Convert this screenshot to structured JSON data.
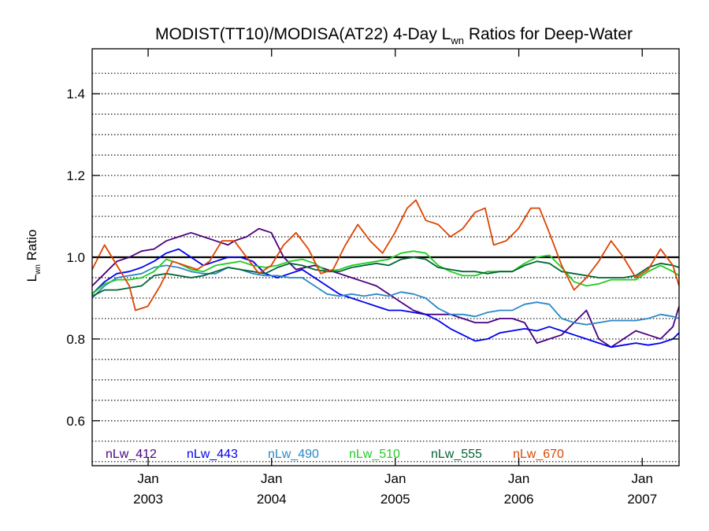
{
  "chart_data": {
    "type": "line",
    "title_main": "MODIST(TT10)/MODISA(AT22) 4-Day L",
    "title_sub": "wn",
    "title_tail": " Ratios for Deep-Water",
    "ylabel_main": "L",
    "ylabel_sub": "wn",
    "ylabel_tail": " Ratio",
    "xlim": [
      2002.5,
      2007.25
    ],
    "ylim": [
      0.49,
      1.51
    ],
    "y_ticks": [
      0.6,
      0.8,
      1.0,
      1.2,
      1.4
    ],
    "y_tick_labels": [
      "0.6",
      "0.8",
      "1.0",
      "1.2",
      "1.4"
    ],
    "y_dotted_gridlines": [
      0.5,
      0.55,
      0.6,
      0.65,
      0.7,
      0.75,
      0.8,
      0.85,
      0.9,
      0.95,
      1.05,
      1.1,
      1.15,
      1.2,
      1.25,
      1.3,
      1.35,
      1.4,
      1.45
    ],
    "reference_line": 1.0,
    "x_ticks": [
      {
        "pos": 2002.953,
        "line1": "Jan",
        "line2": "2003"
      },
      {
        "pos": 2003.952,
        "line1": "Jan",
        "line2": "2004"
      },
      {
        "pos": 2004.953,
        "line1": "Jan",
        "line2": "2005"
      },
      {
        "pos": 2005.953,
        "line1": "Jan",
        "line2": "2006"
      },
      {
        "pos": 2006.952,
        "line1": "Jan",
        "line2": "2007"
      }
    ],
    "legend_placement": "bottom",
    "series": [
      {
        "name": "nLw_412",
        "color": "#4b0082",
        "x": [
          2002.5,
          2002.6,
          2002.7,
          2002.8,
          2002.9,
          2003.0,
          2003.1,
          2003.2,
          2003.3,
          2003.4,
          2003.5,
          2003.6,
          2003.65,
          2003.75,
          2003.85,
          2003.95,
          2004.05,
          2004.15,
          2004.3,
          2004.4,
          2004.5,
          2004.6,
          2004.7,
          2004.8,
          2004.9,
          2005.0,
          2005.1,
          2005.2,
          2005.3,
          2005.4,
          2005.5,
          2005.6,
          2005.7,
          2005.8,
          2005.9,
          2006.0,
          2006.1,
          2006.2,
          2006.3,
          2006.4,
          2006.5,
          2006.6,
          2006.7,
          2006.8,
          2006.9,
          2007.0,
          2007.1,
          2007.2,
          2007.25
        ],
        "y": [
          0.93,
          0.96,
          0.99,
          1.0,
          1.015,
          1.02,
          1.04,
          1.05,
          1.06,
          1.05,
          1.04,
          1.03,
          1.04,
          1.05,
          1.07,
          1.06,
          1.0,
          0.97,
          0.98,
          0.97,
          0.96,
          0.95,
          0.94,
          0.93,
          0.91,
          0.89,
          0.87,
          0.86,
          0.86,
          0.86,
          0.85,
          0.84,
          0.84,
          0.85,
          0.85,
          0.84,
          0.79,
          0.8,
          0.81,
          0.84,
          0.87,
          0.8,
          0.78,
          0.8,
          0.82,
          0.81,
          0.8,
          0.83,
          0.88
        ]
      },
      {
        "name": "nLw_443",
        "color": "#0000ee",
        "x": [
          2002.5,
          2002.6,
          2002.7,
          2002.8,
          2002.9,
          2003.0,
          2003.1,
          2003.2,
          2003.3,
          2003.4,
          2003.5,
          2003.6,
          2003.7,
          2003.8,
          2003.9,
          2004.0,
          2004.1,
          2004.2,
          2004.3,
          2004.4,
          2004.5,
          2004.6,
          2004.7,
          2004.8,
          2004.9,
          2005.0,
          2005.1,
          2005.2,
          2005.3,
          2005.4,
          2005.5,
          2005.6,
          2005.7,
          2005.8,
          2005.9,
          2006.0,
          2006.1,
          2006.2,
          2006.3,
          2006.4,
          2006.5,
          2006.6,
          2006.7,
          2006.8,
          2006.9,
          2007.0,
          2007.1,
          2007.2,
          2007.25
        ],
        "y": [
          0.91,
          0.94,
          0.96,
          0.965,
          0.975,
          0.99,
          1.01,
          1.02,
          1.0,
          0.98,
          0.99,
          1.0,
          1.0,
          0.99,
          0.96,
          0.95,
          0.96,
          0.97,
          0.95,
          0.93,
          0.91,
          0.9,
          0.89,
          0.88,
          0.87,
          0.87,
          0.865,
          0.86,
          0.845,
          0.825,
          0.81,
          0.795,
          0.8,
          0.815,
          0.82,
          0.825,
          0.82,
          0.83,
          0.82,
          0.81,
          0.8,
          0.79,
          0.78,
          0.785,
          0.79,
          0.785,
          0.79,
          0.8,
          0.815
        ]
      },
      {
        "name": "nLw_490",
        "color": "#2a88c8",
        "x": [
          2002.5,
          2002.6,
          2002.7,
          2002.8,
          2002.9,
          2003.0,
          2003.1,
          2003.2,
          2003.3,
          2003.4,
          2003.5,
          2003.6,
          2003.7,
          2003.8,
          2003.9,
          2004.0,
          2004.1,
          2004.2,
          2004.3,
          2004.4,
          2004.5,
          2004.6,
          2004.7,
          2004.8,
          2004.9,
          2005.0,
          2005.1,
          2005.2,
          2005.3,
          2005.4,
          2005.5,
          2005.6,
          2005.7,
          2005.8,
          2005.9,
          2006.0,
          2006.1,
          2006.2,
          2006.3,
          2006.4,
          2006.5,
          2006.6,
          2006.7,
          2006.8,
          2006.9,
          2007.0,
          2007.1,
          2007.2,
          2007.25
        ],
        "y": [
          0.9,
          0.93,
          0.95,
          0.955,
          0.96,
          0.975,
          0.98,
          0.975,
          0.965,
          0.96,
          0.96,
          0.975,
          0.97,
          0.96,
          0.955,
          0.955,
          0.95,
          0.95,
          0.93,
          0.91,
          0.905,
          0.91,
          0.905,
          0.91,
          0.905,
          0.915,
          0.91,
          0.9,
          0.875,
          0.86,
          0.86,
          0.855,
          0.865,
          0.87,
          0.87,
          0.885,
          0.89,
          0.885,
          0.85,
          0.84,
          0.835,
          0.84,
          0.845,
          0.845,
          0.845,
          0.85,
          0.86,
          0.855,
          0.85
        ]
      },
      {
        "name": "nLw_510",
        "color": "#22cc22",
        "x": [
          2002.5,
          2002.6,
          2002.7,
          2002.8,
          2002.9,
          2003.0,
          2003.1,
          2003.2,
          2003.3,
          2003.4,
          2003.5,
          2003.6,
          2003.7,
          2003.8,
          2003.9,
          2004.0,
          2004.1,
          2004.2,
          2004.3,
          2004.4,
          2004.5,
          2004.6,
          2004.7,
          2004.8,
          2004.9,
          2005.0,
          2005.1,
          2005.2,
          2005.3,
          2005.4,
          2005.5,
          2005.6,
          2005.7,
          2005.8,
          2005.9,
          2006.0,
          2006.1,
          2006.2,
          2006.3,
          2006.4,
          2006.5,
          2006.6,
          2006.7,
          2006.8,
          2006.9,
          2007.0,
          2007.1,
          2007.2,
          2007.25
        ],
        "y": [
          0.91,
          0.935,
          0.945,
          0.945,
          0.95,
          0.965,
          0.995,
          0.985,
          0.97,
          0.965,
          0.98,
          0.985,
          0.99,
          0.98,
          0.975,
          0.98,
          0.99,
          0.995,
          0.985,
          0.965,
          0.97,
          0.98,
          0.985,
          0.99,
          0.995,
          1.01,
          1.015,
          1.01,
          0.98,
          0.965,
          0.955,
          0.955,
          0.965,
          0.965,
          0.965,
          0.985,
          1.0,
          1.005,
          0.975,
          0.94,
          0.93,
          0.935,
          0.945,
          0.945,
          0.945,
          0.965,
          0.98,
          0.965,
          0.955
        ]
      },
      {
        "name": "nLw_555",
        "color": "#006633",
        "x": [
          2002.5,
          2002.6,
          2002.7,
          2002.8,
          2002.9,
          2003.0,
          2003.1,
          2003.2,
          2003.3,
          2003.4,
          2003.5,
          2003.6,
          2003.7,
          2003.8,
          2003.9,
          2004.0,
          2004.1,
          2004.2,
          2004.3,
          2004.4,
          2004.5,
          2004.6,
          2004.7,
          2004.8,
          2004.9,
          2005.0,
          2005.1,
          2005.2,
          2005.3,
          2005.4,
          2005.5,
          2005.6,
          2005.7,
          2005.8,
          2005.9,
          2006.0,
          2006.1,
          2006.2,
          2006.3,
          2006.4,
          2006.5,
          2006.6,
          2006.7,
          2006.8,
          2006.9,
          2007.0,
          2007.1,
          2007.2,
          2007.25
        ],
        "y": [
          0.905,
          0.92,
          0.92,
          0.925,
          0.93,
          0.955,
          0.96,
          0.955,
          0.95,
          0.955,
          0.965,
          0.975,
          0.97,
          0.965,
          0.96,
          0.975,
          0.985,
          0.98,
          0.97,
          0.965,
          0.965,
          0.975,
          0.98,
          0.985,
          0.98,
          0.995,
          1.0,
          0.995,
          0.975,
          0.97,
          0.965,
          0.965,
          0.96,
          0.965,
          0.965,
          0.98,
          0.99,
          0.985,
          0.965,
          0.96,
          0.955,
          0.95,
          0.95,
          0.95,
          0.955,
          0.975,
          0.985,
          0.98,
          0.975
        ]
      },
      {
        "name": "nLw_670",
        "color": "#dd4400",
        "x": [
          2002.5,
          2002.55,
          2002.6,
          2002.7,
          2002.8,
          2002.85,
          2002.95,
          2003.05,
          2003.15,
          2003.25,
          2003.35,
          2003.45,
          2003.55,
          2003.65,
          2003.75,
          2003.85,
          2003.95,
          2004.05,
          2004.15,
          2004.25,
          2004.35,
          2004.45,
          2004.55,
          2004.65,
          2004.75,
          2004.85,
          2004.95,
          2005.05,
          2005.12,
          2005.2,
          2005.3,
          2005.4,
          2005.5,
          2005.6,
          2005.68,
          2005.75,
          2005.85,
          2005.95,
          2006.05,
          2006.12,
          2006.2,
          2006.3,
          2006.4,
          2006.5,
          2006.6,
          2006.7,
          2006.8,
          2006.9,
          2007.0,
          2007.1,
          2007.2,
          2007.25
        ],
        "y": [
          0.97,
          1.0,
          1.03,
          0.98,
          0.93,
          0.87,
          0.88,
          0.93,
          0.99,
          0.98,
          0.97,
          0.99,
          1.04,
          1.04,
          1.0,
          0.96,
          0.98,
          1.03,
          1.06,
          1.02,
          0.96,
          0.97,
          1.03,
          1.08,
          1.04,
          1.01,
          1.06,
          1.12,
          1.14,
          1.09,
          1.08,
          1.05,
          1.07,
          1.11,
          1.12,
          1.03,
          1.04,
          1.07,
          1.12,
          1.12,
          1.06,
          0.98,
          0.92,
          0.95,
          0.99,
          1.04,
          1.0,
          0.95,
          0.97,
          1.02,
          0.98,
          0.93
        ]
      }
    ]
  }
}
